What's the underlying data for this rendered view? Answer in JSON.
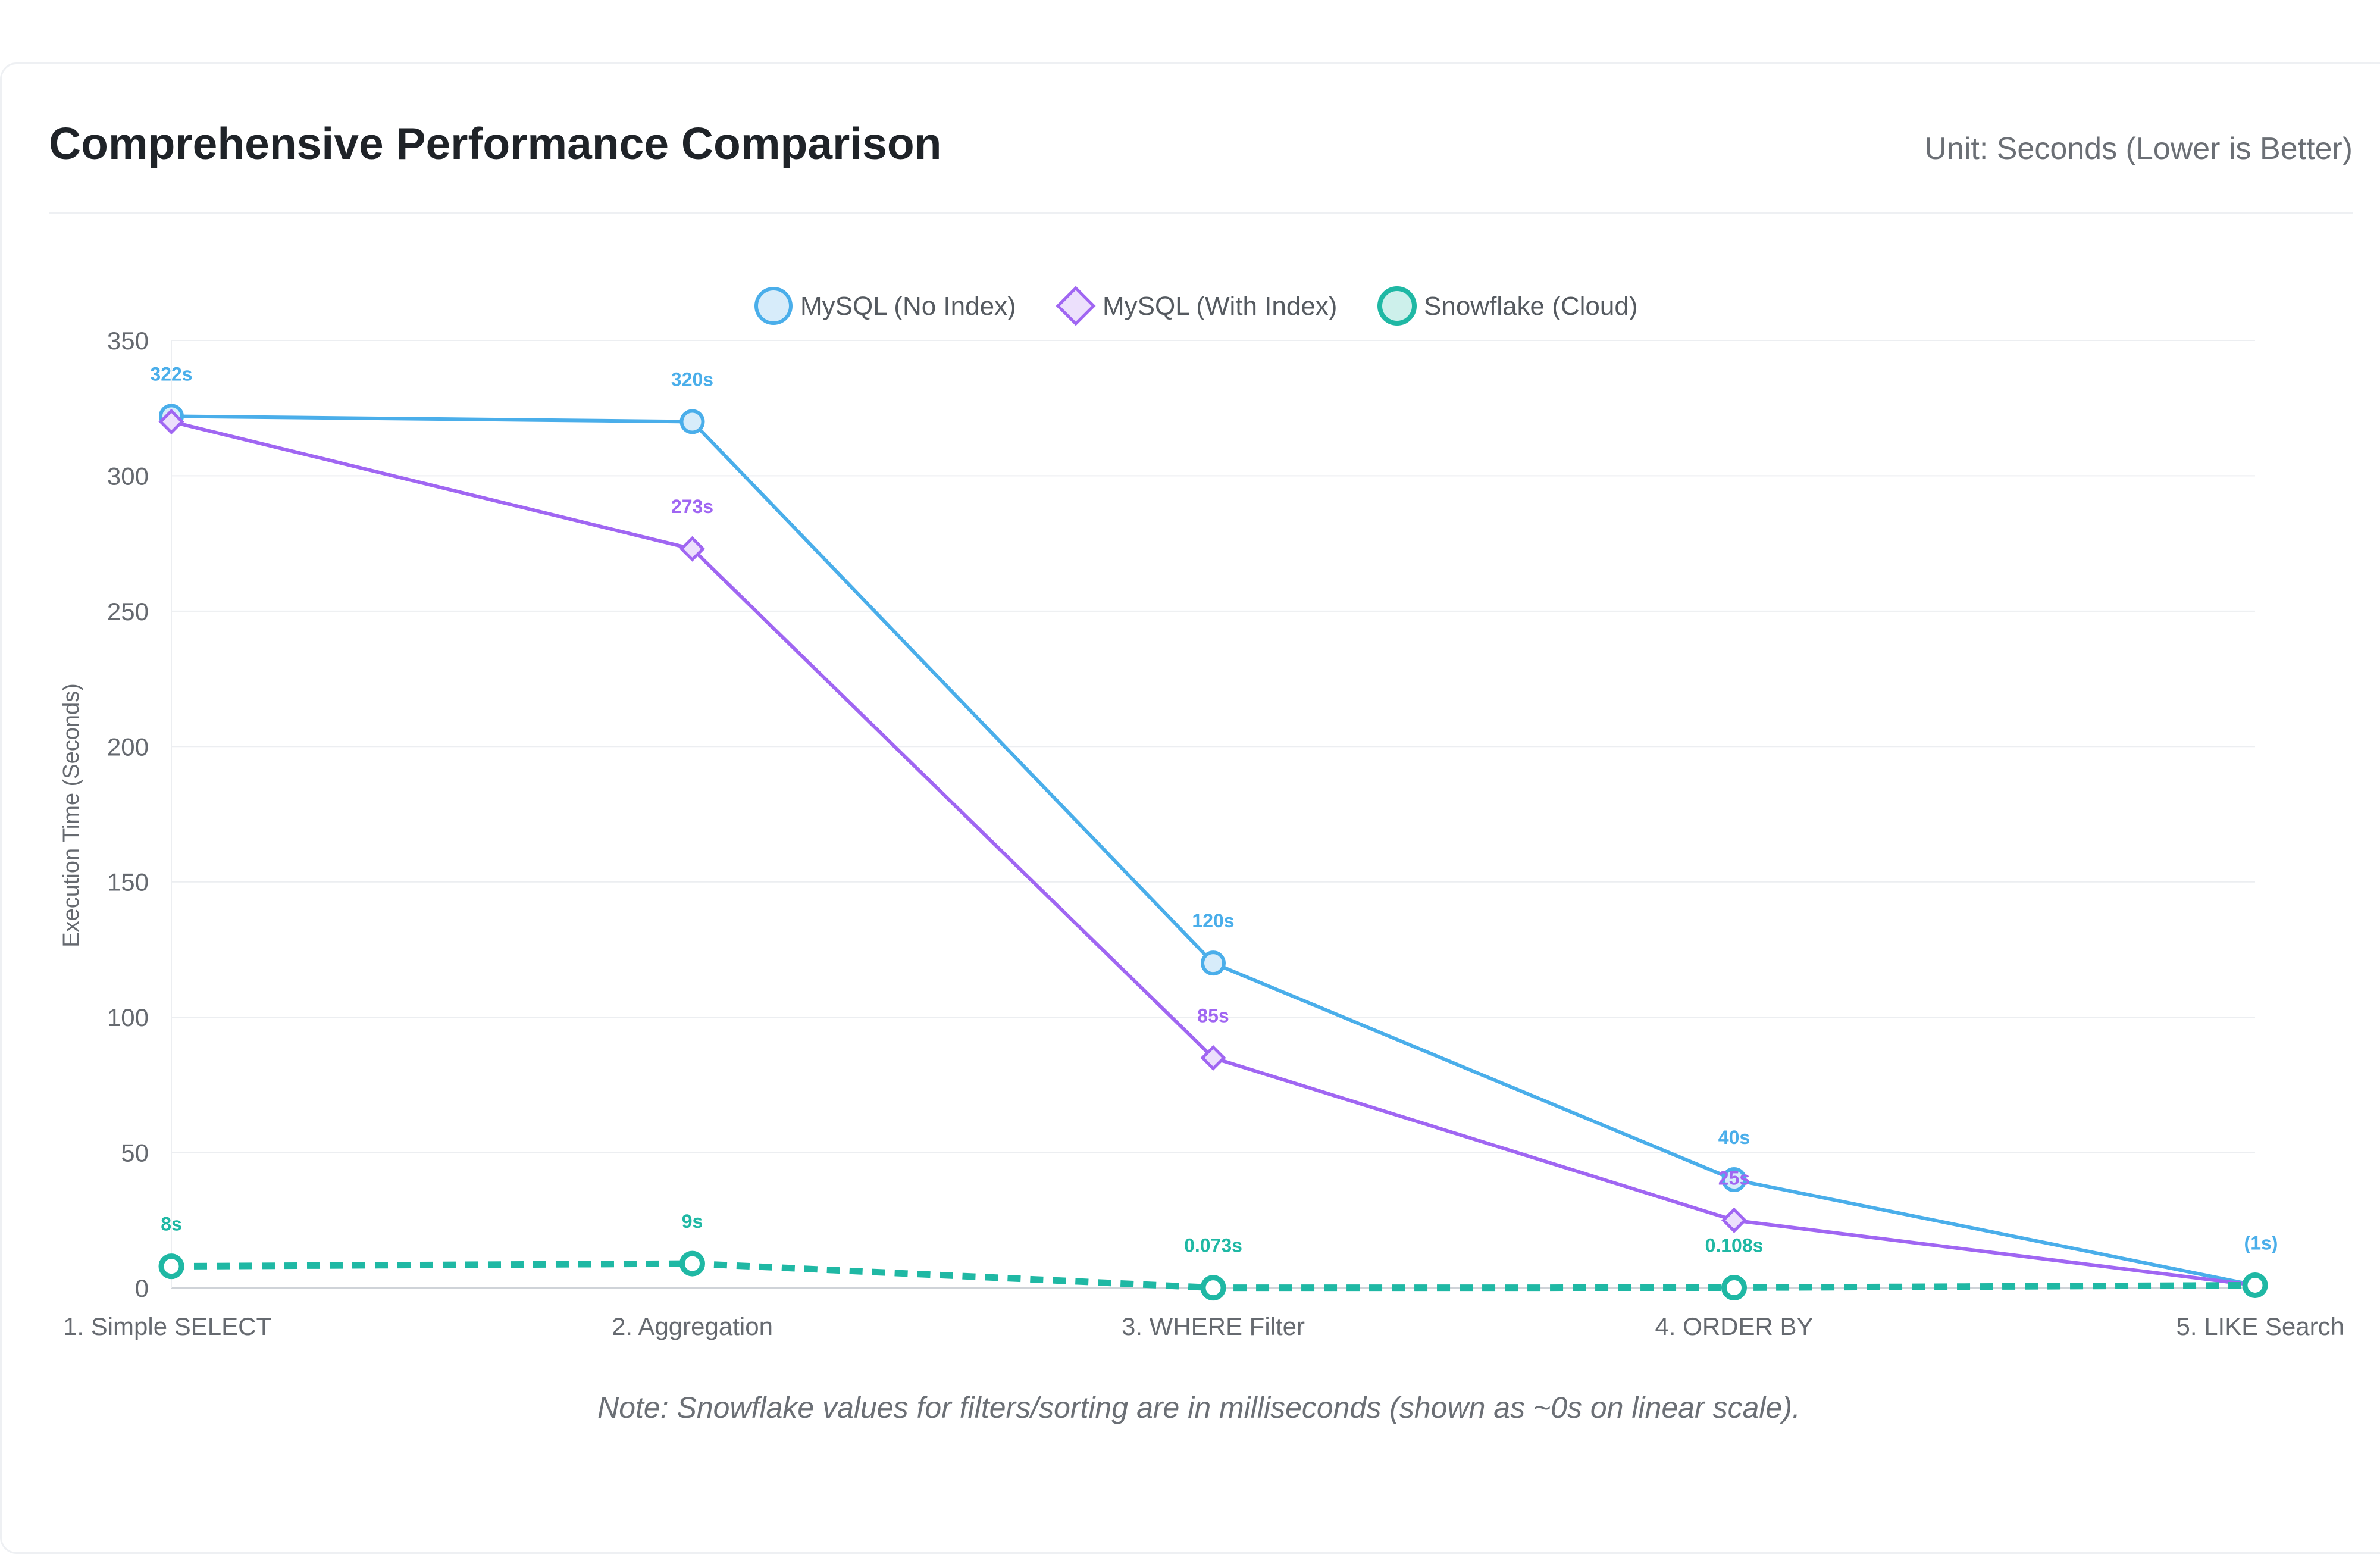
{
  "header": {
    "title": "Comprehensive Performance Comparison",
    "unit": "Unit: Seconds (Lower is Better)"
  },
  "note": "Note: Snowflake values for filters/sorting are in milliseconds (shown as ~0s on linear scale).",
  "chart_data": {
    "type": "line",
    "title": "Comprehensive Performance Comparison",
    "xlabel": "",
    "ylabel": "Execution Time (Seconds)",
    "ylim": [
      0,
      350
    ],
    "yticks": [
      0,
      50,
      100,
      150,
      200,
      250,
      300,
      350
    ],
    "grid": true,
    "legend_position": "top-center",
    "categories": [
      "1. Simple SELECT",
      "2. Aggregation",
      "3. WHERE Filter",
      "4. ORDER BY",
      "5. LIKE Search"
    ],
    "series": [
      {
        "name": "MySQL (No Index)",
        "values": [
          322,
          320,
          120,
          40,
          1
        ],
        "labels": [
          "322s",
          "320s",
          "120s",
          "40s",
          "(1s)"
        ],
        "color": "#4aaeea",
        "fill": "#d7ecfa",
        "marker": "circle",
        "dashed": false
      },
      {
        "name": "MySQL (With Index)",
        "values": [
          320,
          273,
          85,
          25,
          1
        ],
        "labels": [
          "",
          "273s",
          "85s",
          "25s",
          ""
        ],
        "color": "#a066f2",
        "fill": "#ece0fc",
        "marker": "diamond",
        "dashed": false
      },
      {
        "name": "Snowflake (Cloud)",
        "values": [
          8,
          9,
          0.073,
          0.108,
          1
        ],
        "labels": [
          "8s",
          "9s",
          "0.073s",
          "0.108s",
          ""
        ],
        "color": "#1fb8a4",
        "fill": "#cdf0eb",
        "marker": "circle",
        "dashed": true
      }
    ]
  }
}
